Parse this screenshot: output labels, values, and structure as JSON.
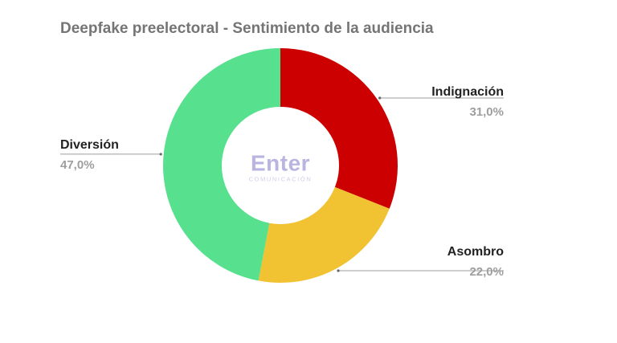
{
  "chart_data": {
    "type": "pie",
    "donut": true,
    "title": "Deepfake preelectoral - Sentimiento de la audiencia",
    "slices": [
      {
        "label": "Indignación",
        "value": 31.0,
        "display": "31,0%",
        "color": "#cc0000"
      },
      {
        "label": "Asombro",
        "value": 22.0,
        "display": "22,0%",
        "color": "#f1c232"
      },
      {
        "label": "Diversión",
        "value": 47.0,
        "display": "47,0%",
        "color": "#57e08d"
      }
    ],
    "legend": "callout labels beside slices"
  },
  "watermark": {
    "main": "Enter",
    "sub": "COMUNICACIÓN"
  }
}
